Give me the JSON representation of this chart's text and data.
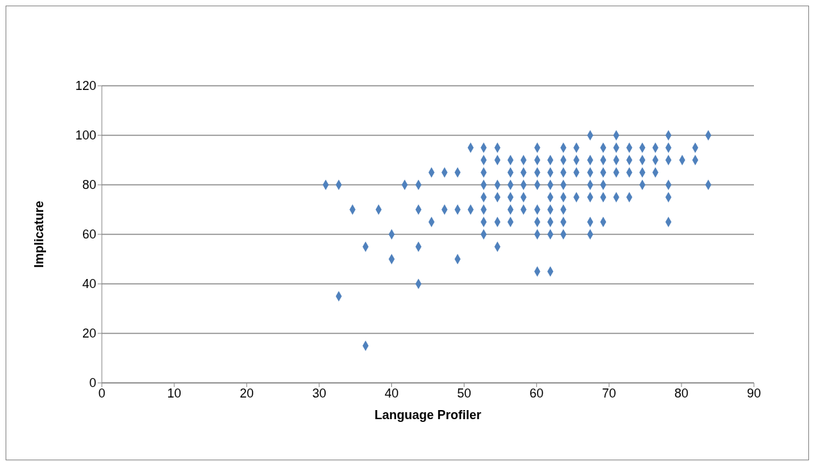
{
  "chart_data": {
    "type": "scatter",
    "xlabel": "Language Profiler",
    "ylabel": "Implicature",
    "x": [
      30.9,
      32.7,
      32.7,
      34.6,
      36.4,
      36.4,
      38.2,
      40.0,
      40.0,
      41.8,
      43.7,
      43.7,
      43.7,
      43.7,
      45.5,
      45.5,
      47.3,
      47.3,
      49.1,
      49.1,
      49.1,
      50.9,
      50.9,
      52.7,
      52.7,
      52.7,
      52.7,
      52.7,
      52.7,
      52.7,
      52.7,
      54.6,
      54.6,
      54.6,
      54.6,
      54.6,
      54.6,
      56.4,
      56.4,
      56.4,
      56.4,
      56.4,
      56.4,
      58.2,
      58.2,
      58.2,
      58.2,
      58.2,
      60.1,
      60.1,
      60.1,
      60.1,
      60.1,
      60.1,
      60.1,
      60.1,
      61.9,
      61.9,
      61.9,
      61.9,
      61.9,
      61.9,
      61.9,
      61.9,
      63.7,
      63.7,
      63.7,
      63.7,
      63.7,
      63.7,
      63.7,
      63.7,
      65.5,
      65.5,
      65.5,
      65.5,
      67.4,
      67.4,
      67.4,
      67.4,
      67.4,
      67.4,
      67.4,
      69.2,
      69.2,
      69.2,
      69.2,
      69.2,
      69.2,
      71.0,
      71.0,
      71.0,
      71.0,
      71.0,
      72.8,
      72.8,
      72.8,
      72.8,
      74.6,
      74.6,
      74.6,
      74.6,
      76.4,
      76.4,
      76.4,
      78.2,
      78.2,
      78.2,
      78.2,
      78.2,
      78.2,
      80.1,
      81.9,
      81.9,
      83.7,
      83.7
    ],
    "values": [
      80,
      80,
      35,
      70,
      55,
      15,
      70,
      60,
      50,
      80,
      80,
      70,
      55,
      40,
      85,
      65,
      85,
      70,
      85,
      70,
      50,
      95,
      70,
      95,
      90,
      85,
      80,
      75,
      70,
      65,
      60,
      95,
      90,
      80,
      75,
      65,
      55,
      90,
      85,
      80,
      75,
      70,
      65,
      90,
      85,
      80,
      75,
      70,
      95,
      90,
      85,
      80,
      70,
      65,
      60,
      45,
      90,
      85,
      80,
      75,
      70,
      65,
      60,
      45,
      95,
      90,
      85,
      80,
      75,
      70,
      65,
      60,
      95,
      90,
      85,
      75,
      100,
      90,
      85,
      80,
      75,
      65,
      60,
      95,
      90,
      85,
      80,
      75,
      65,
      100,
      95,
      90,
      85,
      75,
      95,
      90,
      85,
      75,
      95,
      90,
      85,
      80,
      95,
      90,
      85,
      100,
      95,
      90,
      80,
      75,
      65,
      90,
      95,
      90,
      100,
      80
    ],
    "color": "#4f81bd",
    "marker": "diamond",
    "xlim": [
      0,
      90
    ],
    "xticks": [
      0,
      10,
      20,
      30,
      40,
      50,
      60,
      70,
      80,
      90
    ],
    "ylim": [
      0,
      120
    ],
    "yticks": [
      0,
      20,
      40,
      60,
      80,
      100,
      120
    ],
    "grid": "y"
  }
}
